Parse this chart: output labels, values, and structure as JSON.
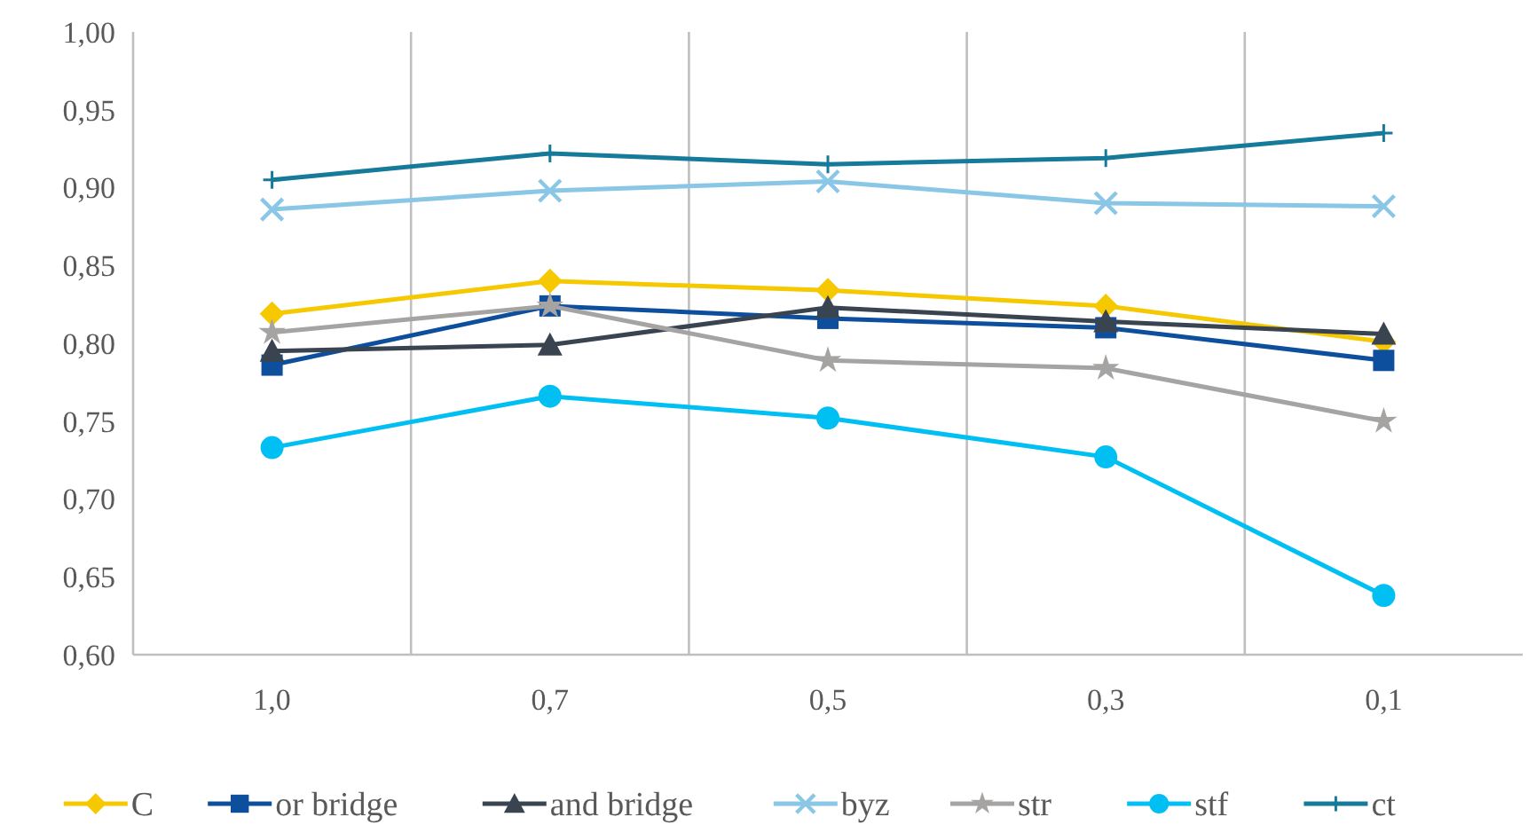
{
  "chart_data": {
    "type": "line",
    "categories": [
      "1,0",
      "0,7",
      "0,5",
      "0,3",
      "0,1"
    ],
    "ylim": [
      0.6,
      1.0
    ],
    "yticks": [
      {
        "value": 0.6,
        "label": "0,60"
      },
      {
        "value": 0.65,
        "label": "0,65"
      },
      {
        "value": 0.7,
        "label": "0,70"
      },
      {
        "value": 0.75,
        "label": "0,75"
      },
      {
        "value": 0.8,
        "label": "0,80"
      },
      {
        "value": 0.85,
        "label": "0,85"
      },
      {
        "value": 0.9,
        "label": "0,90"
      },
      {
        "value": 0.95,
        "label": "0,95"
      },
      {
        "value": 1.0,
        "label": "1,00"
      }
    ],
    "grid": "x",
    "legend": "bottom",
    "series": [
      {
        "name": "C",
        "color": "#f5c800",
        "marker": "diamond",
        "values": [
          0.819,
          0.84,
          0.834,
          0.824,
          0.801
        ]
      },
      {
        "name": "or bridge",
        "color": "#0d4f9c",
        "marker": "square",
        "values": [
          0.786,
          0.824,
          0.816,
          0.81,
          0.789
        ]
      },
      {
        "name": "and bridge",
        "color": "#3a4450",
        "marker": "triangle",
        "values": [
          0.795,
          0.799,
          0.823,
          0.814,
          0.806
        ]
      },
      {
        "name": "byz",
        "color": "#8ac6e6",
        "marker": "cross",
        "values": [
          0.886,
          0.898,
          0.904,
          0.89,
          0.888
        ]
      },
      {
        "name": "str",
        "color": "#a6a3a3",
        "marker": "star",
        "values": [
          0.807,
          0.824,
          0.789,
          0.784,
          0.75
        ]
      },
      {
        "name": "stf",
        "color": "#00bff3",
        "marker": "circle",
        "values": [
          0.733,
          0.766,
          0.752,
          0.727,
          0.638
        ]
      },
      {
        "name": "ct",
        "color": "#167a9a",
        "marker": "plus",
        "values": [
          0.905,
          0.922,
          0.915,
          0.919,
          0.935
        ]
      }
    ]
  }
}
